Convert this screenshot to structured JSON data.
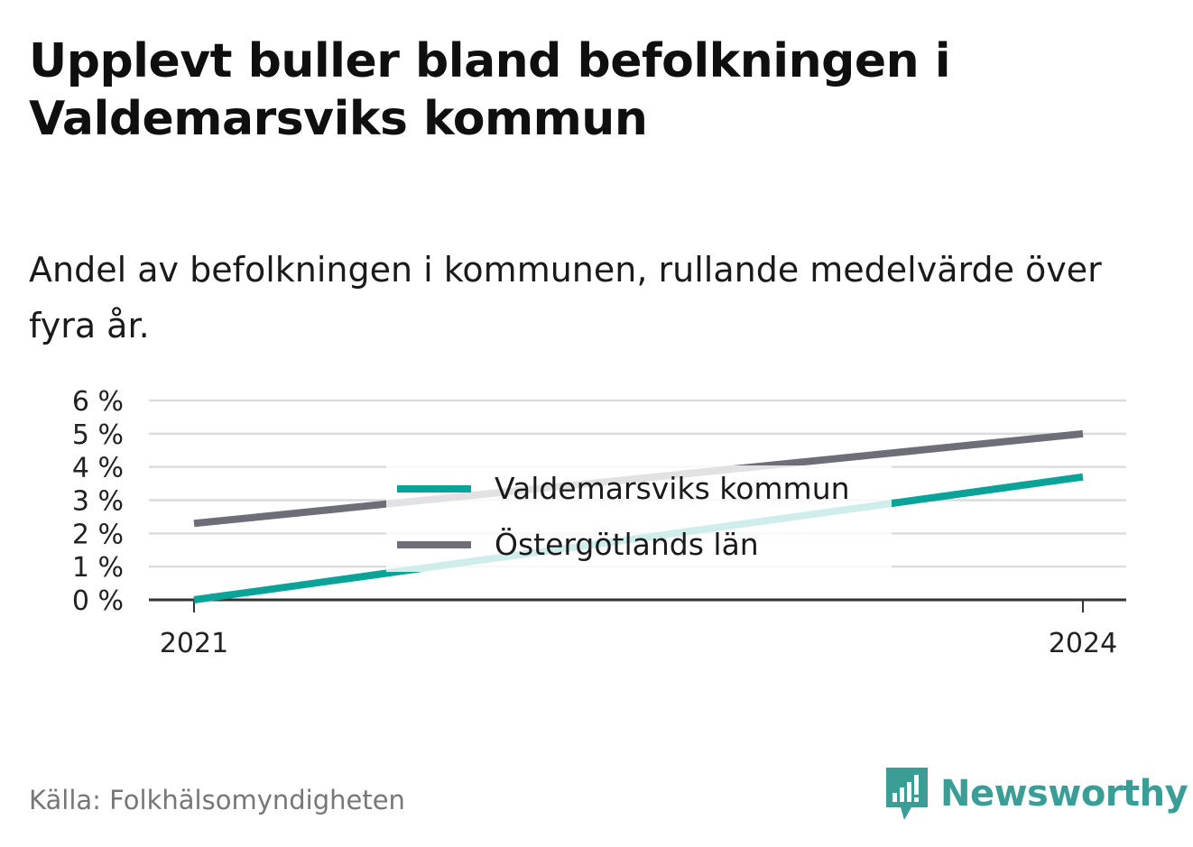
{
  "title": "Upplevt buller bland befolkningen i Valdemarsviks kommun",
  "subtitle": "Andel av befolkningen i kommunen, rullande medelvärde över fyra år.",
  "source": "Källa: Folkhälsomyndigheten",
  "brand": "Newsworthy",
  "colors": {
    "series_kommun": "#0aa399",
    "series_lan": "#6e6e78",
    "grid": "#dcdcdc",
    "axis": "#333333",
    "brand": "#3a9e97"
  },
  "chart_data": {
    "type": "line",
    "x": [
      2021,
      2024
    ],
    "x_tick_labels": [
      "2021",
      "2024"
    ],
    "y_tick_labels": [
      "0 %",
      "1 %",
      "2 %",
      "3 %",
      "4 %",
      "5 %",
      "6 %"
    ],
    "ylim": [
      0,
      6
    ],
    "grid": true,
    "legend": "center",
    "series": [
      {
        "name": "Valdemarsviks kommun",
        "values": [
          0.0,
          3.7
        ]
      },
      {
        "name": "Östergötlands län",
        "values": [
          2.3,
          5.0
        ]
      }
    ]
  }
}
